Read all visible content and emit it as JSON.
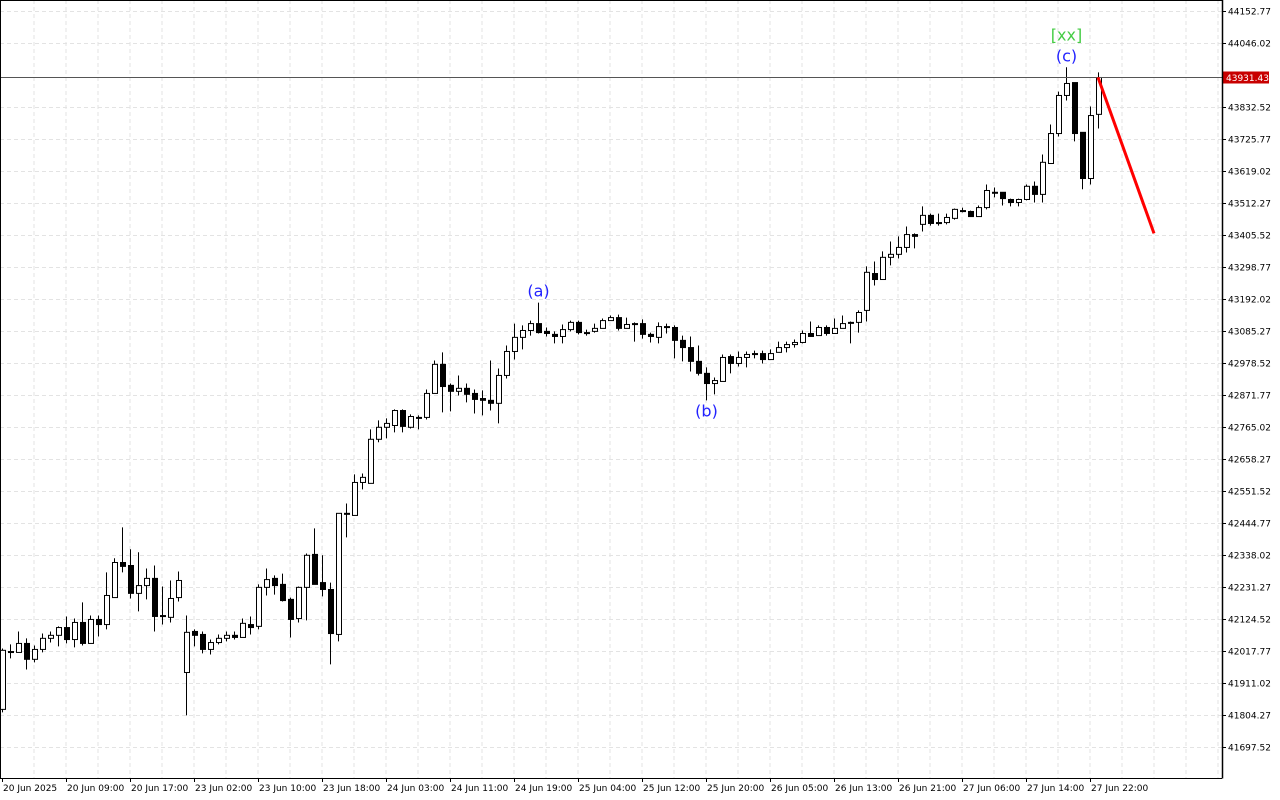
{
  "chart_data": {
    "type": "candlestick",
    "title": "",
    "xlabel": "",
    "ylabel": "",
    "ylim": [
      41640,
      44185
    ],
    "grid": true,
    "yticks": [
      44152.77,
      44046.02,
      43832.52,
      43725.77,
      43619.02,
      43512.27,
      43405.52,
      43298.77,
      43192.02,
      43085.27,
      42978.52,
      42871.77,
      42765.02,
      42658.27,
      42551.52,
      42444.77,
      42338.02,
      42231.27,
      42124.52,
      42017.77,
      41911.02,
      41804.27,
      41697.52
    ],
    "ytick_labels": [
      "44152.77",
      "44046.02",
      "43832.52",
      "43725.77",
      "43619.02",
      "43512.27",
      "43405.52",
      "43298.77",
      "43192.02",
      "43085.27",
      "42978.52",
      "42871.77",
      "42765.02",
      "42658.27",
      "42551.52",
      "42444.77",
      "42338.02",
      "42231.27",
      "42124.52",
      "42017.77",
      "41911.02",
      "41804.27",
      "41697.52"
    ],
    "xtick_labels": [
      "20 Jun 2025",
      "20 Jun 09:00",
      "20 Jun 17:00",
      "23 Jun 02:00",
      "23 Jun 10:00",
      "23 Jun 18:00",
      "24 Jun 03:00",
      "24 Jun 11:00",
      "24 Jun 19:00",
      "25 Jun 04:00",
      "25 Jun 12:00",
      "25 Jun 20:00",
      "26 Jun 05:00",
      "26 Jun 13:00",
      "26 Jun 21:00",
      "27 Jun 06:00",
      "27 Jun 14:00",
      "27 Jun 22:00"
    ],
    "xtick_every_bars": 8,
    "current_price": 43931.43,
    "current_price_label": "43931.43",
    "colors": {
      "bull_fill": "#ffffff",
      "bear_fill": "#000000",
      "outline": "#000000",
      "grid": "#e3e3e3",
      "current_price_bg": "#c80000",
      "forecast": "#ff0000",
      "wave_label": "#2222ff",
      "degree_label": "#44cc44"
    },
    "ohlc": [
      [
        41823,
        42026,
        41813,
        42020
      ],
      [
        42016,
        42040,
        41993,
        42016
      ],
      [
        42013,
        42083,
        42013,
        42043
      ],
      [
        42043,
        42060,
        41956,
        41990
      ],
      [
        41990,
        42036,
        41980,
        42023
      ],
      [
        42023,
        42076,
        42013,
        42060
      ],
      [
        42060,
        42083,
        42046,
        42070
      ],
      [
        42070,
        42100,
        42033,
        42096
      ],
      [
        42096,
        42133,
        42043,
        42056
      ],
      [
        42056,
        42126,
        42030,
        42113
      ],
      [
        42113,
        42180,
        42036,
        42043
      ],
      [
        42043,
        42136,
        42043,
        42123
      ],
      [
        42123,
        42136,
        42066,
        42106
      ],
      [
        42106,
        42280,
        42090,
        42203
      ],
      [
        42196,
        42327,
        42196,
        42313
      ],
      [
        42313,
        42430,
        42280,
        42300
      ],
      [
        42303,
        42357,
        42193,
        42210
      ],
      [
        42210,
        42347,
        42150,
        42236
      ],
      [
        42236,
        42293,
        42190,
        42260
      ],
      [
        42260,
        42303,
        42083,
        42133
      ],
      [
        42136,
        42233,
        42106,
        42136
      ],
      [
        42130,
        42253,
        42113,
        42193
      ],
      [
        42196,
        42283,
        42183,
        42253
      ],
      [
        41946,
        42136,
        41803,
        42080
      ],
      [
        42083,
        42090,
        42033,
        42070
      ],
      [
        42073,
        42083,
        42010,
        42023
      ],
      [
        42023,
        42056,
        42006,
        42046
      ],
      [
        42046,
        42073,
        42040,
        42060
      ],
      [
        42060,
        42083,
        42050,
        42070
      ],
      [
        42070,
        42083,
        42056,
        42063
      ],
      [
        42063,
        42126,
        42063,
        42110
      ],
      [
        42106,
        42133,
        42073,
        42096
      ],
      [
        42100,
        42240,
        42090,
        42230
      ],
      [
        42230,
        42293,
        42203,
        42256
      ],
      [
        42260,
        42270,
        42206,
        42236
      ],
      [
        42240,
        42276,
        42183,
        42186
      ],
      [
        42190,
        42196,
        42063,
        42123
      ],
      [
        42126,
        42233,
        42113,
        42230
      ],
      [
        42230,
        42343,
        42120,
        42337
      ],
      [
        42340,
        42427,
        42240,
        42240
      ],
      [
        42246,
        42337,
        42200,
        42223
      ],
      [
        42223,
        42246,
        41973,
        42076
      ],
      [
        42073,
        42477,
        42050,
        42477
      ],
      [
        42477,
        42510,
        42397,
        42477
      ],
      [
        42470,
        42607,
        42470,
        42580
      ],
      [
        42580,
        42610,
        42557,
        42597
      ],
      [
        42577,
        42757,
        42577,
        42724
      ],
      [
        42724,
        42787,
        42714,
        42764
      ],
      [
        42764,
        42794,
        42727,
        42777
      ],
      [
        42770,
        42824,
        42747,
        42820
      ],
      [
        42820,
        42824,
        42747,
        42767
      ],
      [
        42764,
        42807,
        42760,
        42800
      ],
      [
        42797,
        42804,
        42757,
        42797
      ],
      [
        42797,
        42890,
        42790,
        42877
      ],
      [
        42877,
        42987,
        42877,
        42974
      ],
      [
        42974,
        43014,
        42814,
        42900
      ],
      [
        42904,
        42910,
        42817,
        42884
      ],
      [
        42884,
        42937,
        42870,
        42894
      ],
      [
        42894,
        42910,
        42847,
        42874
      ],
      [
        42877,
        42890,
        42810,
        42857
      ],
      [
        42860,
        42887,
        42804,
        42854
      ],
      [
        42854,
        42987,
        42820,
        42844
      ],
      [
        42844,
        42960,
        42777,
        42937
      ],
      [
        42937,
        43037,
        42927,
        43017
      ],
      [
        43017,
        43110,
        42990,
        43064
      ],
      [
        43064,
        43104,
        43024,
        43087
      ],
      [
        43087,
        43120,
        43070,
        43110
      ],
      [
        43110,
        43180,
        43077,
        43080
      ],
      [
        43084,
        43097,
        43067,
        43077
      ],
      [
        43074,
        43084,
        43044,
        43067
      ],
      [
        43067,
        43107,
        43044,
        43090
      ],
      [
        43090,
        43120,
        43084,
        43114
      ],
      [
        43114,
        43120,
        43074,
        43080
      ],
      [
        43080,
        43090,
        43070,
        43080
      ],
      [
        43084,
        43110,
        43080,
        43094
      ],
      [
        43094,
        43127,
        43094,
        43120
      ],
      [
        43120,
        43137,
        43120,
        43130
      ],
      [
        43130,
        43140,
        43087,
        43094
      ],
      [
        43094,
        43130,
        43094,
        43107
      ],
      [
        43110,
        43114,
        43050,
        43110
      ],
      [
        43110,
        43124,
        43060,
        43074
      ],
      [
        43074,
        43080,
        43047,
        43067
      ],
      [
        43064,
        43114,
        43044,
        43100
      ],
      [
        43100,
        43110,
        43077,
        43097
      ],
      [
        43097,
        43104,
        42994,
        43054
      ],
      [
        43054,
        43070,
        42984,
        43030
      ],
      [
        43030,
        43067,
        42950,
        42984
      ],
      [
        42984,
        43037,
        42937,
        42944
      ],
      [
        42944,
        42964,
        42854,
        42910
      ],
      [
        42910,
        42930,
        42874,
        42920
      ],
      [
        42917,
        43007,
        42917,
        42997
      ],
      [
        43000,
        43007,
        42944,
        42977
      ],
      [
        42977,
        43017,
        42967,
        42997
      ],
      [
        42997,
        43017,
        42964,
        43007
      ],
      [
        43010,
        43020,
        42994,
        43010
      ],
      [
        43010,
        43020,
        42977,
        42990
      ],
      [
        42990,
        43024,
        42990,
        43010
      ],
      [
        43014,
        43050,
        43014,
        43030
      ],
      [
        43030,
        43050,
        43014,
        43040
      ],
      [
        43040,
        43057,
        43030,
        43047
      ],
      [
        43047,
        43087,
        43044,
        43077
      ],
      [
        43077,
        43117,
        43067,
        43067
      ],
      [
        43070,
        43104,
        43070,
        43097
      ],
      [
        43097,
        43104,
        43070,
        43077
      ],
      [
        43077,
        43127,
        43077,
        43094
      ],
      [
        43094,
        43137,
        43094,
        43110
      ],
      [
        43114,
        43117,
        43044,
        43114
      ],
      [
        43114,
        43154,
        43080,
        43147
      ],
      [
        43154,
        43301,
        43117,
        43281
      ],
      [
        43277,
        43317,
        43237,
        43257
      ],
      [
        43257,
        43351,
        43257,
        43331
      ],
      [
        43331,
        43384,
        43304,
        43341
      ],
      [
        43341,
        43401,
        43327,
        43364
      ],
      [
        43364,
        43434,
        43347,
        43407
      ],
      [
        43407,
        43411,
        43361,
        43401
      ],
      [
        43441,
        43501,
        43417,
        43471
      ],
      [
        43471,
        43477,
        43437,
        43444
      ],
      [
        43447,
        43477,
        43437,
        43447
      ],
      [
        43447,
        43477,
        43441,
        43464
      ],
      [
        43461,
        43494,
        43457,
        43491
      ],
      [
        43487,
        43497,
        43481,
        43487
      ],
      [
        43484,
        43487,
        43467,
        43467
      ],
      [
        43467,
        43504,
        43467,
        43497
      ],
      [
        43497,
        43574,
        43491,
        43554
      ],
      [
        43548,
        43564,
        43531,
        43548
      ],
      [
        43548,
        43548,
        43504,
        43527
      ],
      [
        43524,
        43527,
        43501,
        43514
      ],
      [
        43514,
        43527,
        43501,
        43524
      ],
      [
        43524,
        43574,
        43521,
        43568
      ],
      [
        43568,
        43584,
        43514,
        43541
      ],
      [
        43541,
        43674,
        43514,
        43648
      ],
      [
        43644,
        43774,
        43644,
        43744
      ],
      [
        43744,
        43884,
        43734,
        43871
      ],
      [
        43871,
        43965,
        43854,
        43911
      ],
      [
        43914,
        43914,
        43718,
        43744
      ],
      [
        43748,
        43748,
        43558,
        43594
      ],
      [
        43594,
        43834,
        43574,
        43804
      ],
      [
        43808,
        43948,
        43761,
        43931
      ]
    ],
    "annotations": [
      {
        "text": "(a)",
        "bar": 67,
        "position": "above",
        "kind": "wave"
      },
      {
        "text": "(b)",
        "bar": 88,
        "position": "below",
        "kind": "wave"
      },
      {
        "text": "(c)",
        "bar": 133,
        "position": "above",
        "kind": "wave"
      },
      {
        "text": "[xx]",
        "bar": 133,
        "position": "above",
        "kind": "degree"
      }
    ],
    "forecast_line": {
      "from_bar": 137,
      "from_price": 43931.43,
      "to_bar": 144,
      "to_price": 43411
    }
  }
}
